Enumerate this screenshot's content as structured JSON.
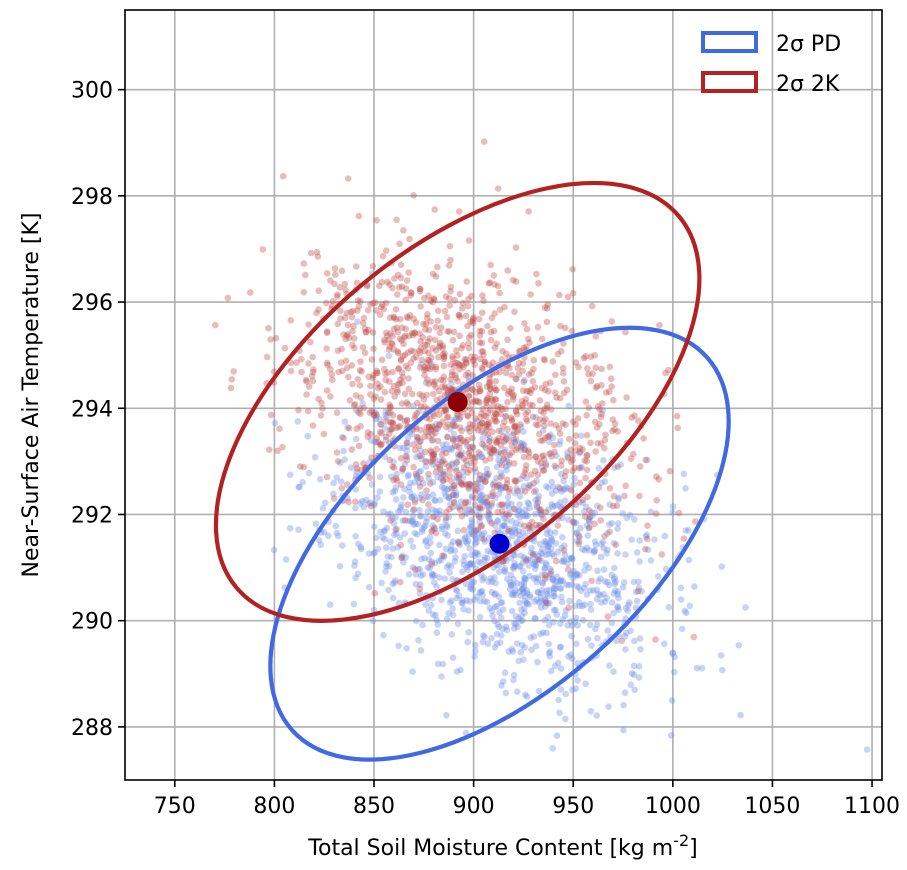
{
  "chart_data": {
    "type": "scatter",
    "title": "",
    "xlabel": "Total Soil Moisture Content [kg m",
    "xlabel_superscript": "-2",
    "xlabel_suffix": "]",
    "ylabel": "Near-Surface Air Temperature [K]",
    "xlim": [
      725,
      1105
    ],
    "ylim": [
      287.0,
      301.5
    ],
    "xticks": [
      750,
      800,
      850,
      900,
      950,
      1000,
      1050,
      1100
    ],
    "yticks": [
      288,
      290,
      292,
      294,
      296,
      298,
      300
    ],
    "grid": true,
    "legend_position": "top-right",
    "series": [
      {
        "name": "PD",
        "legend_label": "2σ PD",
        "color": "#4169e1",
        "point_color": "#6f8fe8",
        "mean": [
          913,
          291.45
        ],
        "mean_color": "#0000cd",
        "ellipse": {
          "center": [
            913,
            291.45
          ],
          "half_width": 140,
          "half_height": 2.75,
          "rotation_deg": -42
        },
        "cloud": {
          "count": 1300,
          "sd_x": 40,
          "sd_y": 1.25,
          "corr": -0.35,
          "seed": 11
        }
      },
      {
        "name": "2K",
        "legend_label": "2σ 2K",
        "color": "#b22222",
        "point_color": "#c0504d",
        "mean": [
          892,
          294.12
        ],
        "mean_color": "#8b0000",
        "ellipse": {
          "center": [
            892,
            294.12
          ],
          "half_width": 145,
          "half_height": 2.85,
          "rotation_deg": -40
        },
        "cloud": {
          "count": 1300,
          "sd_x": 42,
          "sd_y": 1.35,
          "corr": -0.38,
          "seed": 29
        }
      }
    ]
  }
}
